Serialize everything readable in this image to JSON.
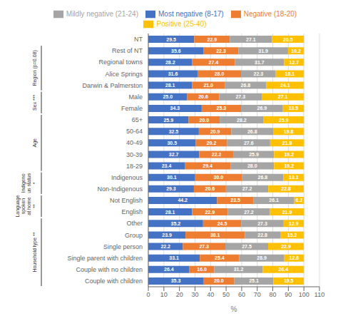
{
  "chart_data": {
    "type": "bar",
    "orientation": "horizontal",
    "stacked": true,
    "categories": [
      "NT",
      "Rest of NT",
      "Regional towns",
      "Alice Springs",
      "Darwin & Palmerston",
      "Male",
      "Female",
      "65+",
      "50-64",
      "40-49",
      "30-39",
      "18-29",
      "Indigenous",
      "Non-Indigenous",
      "Not English",
      "English",
      "Other",
      "Group",
      "Single person",
      "Single parent with children",
      "Couple with no children",
      "Couple with children"
    ],
    "series": [
      {
        "name": "Most negative (8-17)",
        "color": "#4472C4",
        "values": [
          29.5,
          35.6,
          28.2,
          31.6,
          28.1,
          25.0,
          34.3,
          25.9,
          32.5,
          30.5,
          32.7,
          23.4,
          30.1,
          29.3,
          44.2,
          28.1,
          35.2,
          23.9,
          22.2,
          33.1,
          26.4,
          35.3
        ],
        "value_labels": [
          "29.5",
          "35.6",
          "28.2",
          "31.6",
          "28.1",
          "25.0",
          "34.3",
          "25.9",
          "32.5",
          "30.5",
          "32.7",
          "23.4",
          "30.1",
          "29.3",
          "44.2",
          "28.1",
          "35.2",
          "23.9",
          "22.2",
          "33.1",
          "26.4",
          "35.3"
        ]
      },
      {
        "name": "Negative (18-20)",
        "color": "#ED7D31",
        "values": [
          22.9,
          22.3,
          27.4,
          28.0,
          21.0,
          20.6,
          25.3,
          20.0,
          20.9,
          20.2,
          22.2,
          29.4,
          30.0,
          20.6,
          23.5,
          22.9,
          24.5,
          38.1,
          27.3,
          25.4,
          16.0,
          20.0
        ],
        "value_labels": [
          "22.9",
          "22.3",
          "27.4",
          "28.0",
          "21.0",
          "20.6",
          "25.3",
          "20.0",
          "20.9",
          "20.2",
          "22.2",
          "29.4",
          "30.0",
          "20.6",
          "23.5",
          "22.9",
          "24.5",
          "38.1",
          "27.3",
          "25.4",
          "16.0",
          "20.0"
        ]
      },
      {
        "name": "Mildly negative (21-24)",
        "color": "#A5A5A5",
        "values": [
          27.1,
          31.9,
          31.7,
          22.3,
          26.8,
          27.3,
          26.9,
          28.2,
          26.8,
          27.6,
          25.9,
          28.0,
          26.8,
          27.2,
          26.1,
          27.2,
          27.3,
          22.8,
          27.5,
          28.9,
          31.2,
          25.1
        ],
        "value_labels": [
          "27.1",
          "31.9",
          "31.7",
          "22.3",
          "26.8",
          "27.3",
          "26.9",
          "28.2",
          "26.8",
          "27.6",
          "25.9",
          "28.0",
          "26.8",
          "27.2",
          "26.1",
          "27.2",
          "27.3",
          "22.8",
          "27.5",
          "28.9",
          "31.2",
          "25.1"
        ]
      },
      {
        "name": "Positive (25-40)",
        "color": "#FFC000",
        "values": [
          20.5,
          10.2,
          12.7,
          18.1,
          24.1,
          27.1,
          13.5,
          25.9,
          19.8,
          21.8,
          19.2,
          19.2,
          13.1,
          22.8,
          6.2,
          21.9,
          12.9,
          15.2,
          22.9,
          12.6,
          26.4,
          19.5
        ],
        "value_labels": [
          "20.5",
          "10.2",
          "12.7",
          "18.1",
          "24.1",
          "27.1",
          "13.5",
          "25.9",
          "19.8",
          "21.8",
          "19.2",
          "19.2",
          "13.1",
          "22.8",
          "6.2",
          "21.9",
          "12.9",
          "15.2",
          "22.9",
          "12.6",
          "26.4",
          "19.5"
        ]
      }
    ],
    "xlabel": "%",
    "xlim": [
      0,
      110
    ],
    "xticks": [
      0,
      10,
      20,
      30,
      40,
      50,
      60,
      70,
      80,
      90,
      100,
      110
    ],
    "grid": true,
    "data_labels": true,
    "legend": "top",
    "annotations": [
      {
        "text": "Region (p=0.08)",
        "from": "Rest of NT",
        "to": "Darwin & Palmerston"
      },
      {
        "text": "Sex ***",
        "from": "Male",
        "to": "Female"
      },
      {
        "text": "Age",
        "from": "65+",
        "to": "18-29"
      },
      {
        "text": "Indigeno\nus status\n*",
        "from": "Indigenous",
        "to": "Non-Indigenous"
      },
      {
        "text": "Language\nspoken\nat home\n**",
        "from": "Not English",
        "to": "English"
      },
      {
        "text": "Household type **",
        "from": "Other",
        "to": "Couple with children"
      }
    ]
  }
}
